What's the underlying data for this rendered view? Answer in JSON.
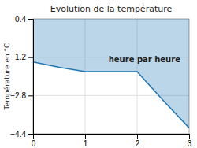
{
  "chart_data": {
    "type": "area",
    "title": "Evolution de la température",
    "ylabel": "Température en °C",
    "x": [
      0,
      0.5,
      1.0,
      2.0,
      2.5,
      3.0
    ],
    "values": [
      -1.4,
      -1.62,
      -1.8,
      -1.8,
      -3.0,
      -4.15
    ],
    "xlim": [
      0,
      3
    ],
    "ylim": [
      -4.4,
      0.4
    ],
    "xticks": [
      0,
      1,
      2,
      3
    ],
    "yticks": [
      0.4,
      {
        "value": -1.2,
        "label": "−1.2"
      },
      {
        "value": -2.8,
        "label": "−2.8"
      },
      {
        "value": -4.4,
        "label": "−4.4"
      }
    ],
    "grid": true,
    "annotations": [
      {
        "text": "heure par heure",
        "x": 1.45,
        "y": -1.15
      }
    ]
  }
}
